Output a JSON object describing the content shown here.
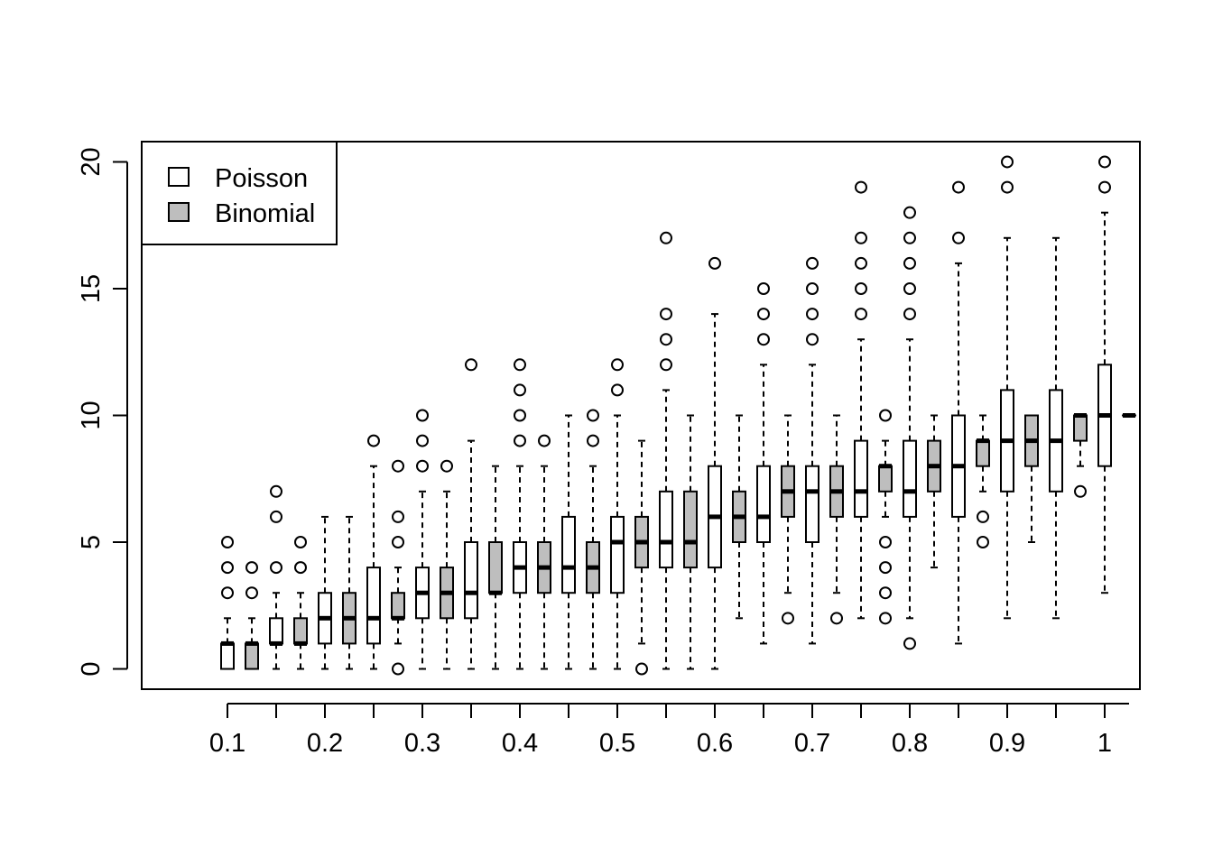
{
  "chart_data": {
    "type": "boxplot",
    "title": "",
    "xlabel": "",
    "ylabel": "",
    "ylim": [
      -0.8,
      20.8
    ],
    "y_ticks": [
      "0",
      "5",
      "10",
      "15",
      "20"
    ],
    "x_tick_labels": [
      "0.1",
      "0.2",
      "0.3",
      "0.4",
      "0.5",
      "0.6",
      "0.7",
      "0.8",
      "0.9",
      "1"
    ],
    "legend": {
      "position": "top-left",
      "entries": [
        {
          "label": "Poisson",
          "fill": "#ffffff"
        },
        {
          "label": "Binomial",
          "fill": "#bebebe"
        }
      ]
    },
    "series": [
      {
        "name": "Poisson",
        "fill": "#ffffff",
        "boxes": [
          {
            "p": 0.1,
            "min": 0,
            "q1": 0,
            "median": 1,
            "q3": 1,
            "max": 2,
            "outliers": [
              3,
              4,
              5
            ]
          },
          {
            "p": 0.15,
            "min": 0,
            "q1": 1,
            "median": 1,
            "q3": 2,
            "max": 3,
            "outliers": [
              4,
              6,
              7
            ]
          },
          {
            "p": 0.2,
            "min": 0,
            "q1": 1,
            "median": 2,
            "q3": 3,
            "max": 6,
            "outliers": []
          },
          {
            "p": 0.25,
            "min": 0,
            "q1": 1,
            "median": 2,
            "q3": 4,
            "max": 8,
            "outliers": [
              9
            ]
          },
          {
            "p": 0.3,
            "min": 0,
            "q1": 2,
            "median": 3,
            "q3": 4,
            "max": 7,
            "outliers": [
              8,
              9,
              10
            ]
          },
          {
            "p": 0.35,
            "min": 0,
            "q1": 2,
            "median": 3,
            "q3": 5,
            "max": 9,
            "outliers": [
              12
            ]
          },
          {
            "p": 0.4,
            "min": 0,
            "q1": 3,
            "median": 4,
            "q3": 5,
            "max": 8,
            "outliers": [
              9,
              10,
              11,
              12
            ]
          },
          {
            "p": 0.45,
            "min": 0,
            "q1": 3,
            "median": 4,
            "q3": 6,
            "max": 10,
            "outliers": []
          },
          {
            "p": 0.5,
            "min": 0,
            "q1": 3,
            "median": 5,
            "q3": 6,
            "max": 10,
            "outliers": [
              11,
              12
            ]
          },
          {
            "p": 0.55,
            "min": 0,
            "q1": 4,
            "median": 5,
            "q3": 7,
            "max": 11,
            "outliers": [
              12,
              13,
              14,
              17
            ]
          },
          {
            "p": 0.6,
            "min": 0,
            "q1": 4,
            "median": 6,
            "q3": 8,
            "max": 14,
            "outliers": [
              16
            ]
          },
          {
            "p": 0.65,
            "min": 1,
            "q1": 5,
            "median": 6,
            "q3": 8,
            "max": 12,
            "outliers": [
              13,
              14,
              15
            ]
          },
          {
            "p": 0.7,
            "min": 1,
            "q1": 5,
            "median": 7,
            "q3": 8,
            "max": 12,
            "outliers": [
              13,
              14,
              15,
              16
            ]
          },
          {
            "p": 0.75,
            "min": 2,
            "q1": 6,
            "median": 7,
            "q3": 9,
            "max": 13,
            "outliers": [
              14,
              15,
              16,
              17,
              19
            ]
          },
          {
            "p": 0.8,
            "min": 2,
            "q1": 6,
            "median": 7,
            "q3": 9,
            "max": 13,
            "outliers": [
              1,
              14,
              15,
              16,
              17,
              18
            ]
          },
          {
            "p": 0.85,
            "min": 1,
            "q1": 6,
            "median": 8,
            "q3": 10,
            "max": 16,
            "outliers": [
              17,
              19
            ]
          },
          {
            "p": 0.9,
            "min": 2,
            "q1": 7,
            "median": 9,
            "q3": 11,
            "max": 17,
            "outliers": [
              19,
              20
            ]
          },
          {
            "p": 0.95,
            "min": 2,
            "q1": 7,
            "median": 9,
            "q3": 11,
            "max": 17,
            "outliers": []
          },
          {
            "p": 1.0,
            "min": 3,
            "q1": 8,
            "median": 10,
            "q3": 12,
            "max": 18,
            "outliers": [
              19,
              20
            ]
          }
        ]
      },
      {
        "name": "Binomial",
        "fill": "#bebebe",
        "boxes": [
          {
            "p": 0.1,
            "min": 0,
            "q1": 0,
            "median": 1,
            "q3": 1,
            "max": 2,
            "outliers": [
              3,
              4
            ]
          },
          {
            "p": 0.15,
            "min": 0,
            "q1": 1,
            "median": 1,
            "q3": 2,
            "max": 3,
            "outliers": [
              4,
              5
            ]
          },
          {
            "p": 0.2,
            "min": 0,
            "q1": 1,
            "median": 2,
            "q3": 3,
            "max": 6,
            "outliers": []
          },
          {
            "p": 0.25,
            "min": 1,
            "q1": 2,
            "median": 2,
            "q3": 3,
            "max": 4,
            "outliers": [
              0,
              5,
              6,
              8
            ]
          },
          {
            "p": 0.3,
            "min": 0,
            "q1": 2,
            "median": 3,
            "q3": 4,
            "max": 7,
            "outliers": [
              8
            ]
          },
          {
            "p": 0.35,
            "min": 0,
            "q1": 3,
            "median": 3,
            "q3": 5,
            "max": 8,
            "outliers": []
          },
          {
            "p": 0.4,
            "min": 0,
            "q1": 3,
            "median": 4,
            "q3": 5,
            "max": 8,
            "outliers": [
              9
            ]
          },
          {
            "p": 0.45,
            "min": 0,
            "q1": 3,
            "median": 4,
            "q3": 5,
            "max": 8,
            "outliers": [
              9,
              10
            ]
          },
          {
            "p": 0.5,
            "min": 1,
            "q1": 4,
            "median": 5,
            "q3": 6,
            "max": 9,
            "outliers": [
              0
            ]
          },
          {
            "p": 0.55,
            "min": 0,
            "q1": 4,
            "median": 5,
            "q3": 7,
            "max": 10,
            "outliers": []
          },
          {
            "p": 0.6,
            "min": 2,
            "q1": 5,
            "median": 6,
            "q3": 7,
            "max": 10,
            "outliers": []
          },
          {
            "p": 0.65,
            "min": 3,
            "q1": 6,
            "median": 7,
            "q3": 8,
            "max": 10,
            "outliers": [
              2
            ]
          },
          {
            "p": 0.7,
            "min": 3,
            "q1": 6,
            "median": 7,
            "q3": 8,
            "max": 10,
            "outliers": [
              2
            ]
          },
          {
            "p": 0.75,
            "min": 6,
            "q1": 7,
            "median": 8,
            "q3": 8,
            "max": 9,
            "outliers": [
              2,
              3,
              4,
              5,
              10
            ]
          },
          {
            "p": 0.8,
            "min": 4,
            "q1": 7,
            "median": 8,
            "q3": 9,
            "max": 10,
            "outliers": []
          },
          {
            "p": 0.85,
            "min": 7,
            "q1": 8,
            "median": 9,
            "q3": 9,
            "max": 10,
            "outliers": [
              5,
              6
            ]
          },
          {
            "p": 0.9,
            "min": 5,
            "q1": 8,
            "median": 9,
            "q3": 10,
            "max": 10,
            "outliers": []
          },
          {
            "p": 0.95,
            "min": 8,
            "q1": 9,
            "median": 10,
            "q3": 10,
            "max": 10,
            "outliers": [
              7
            ]
          },
          {
            "p": 1.0,
            "min": 10,
            "q1": 10,
            "median": 10,
            "q3": 10,
            "max": 10,
            "outliers": []
          }
        ]
      }
    ]
  }
}
